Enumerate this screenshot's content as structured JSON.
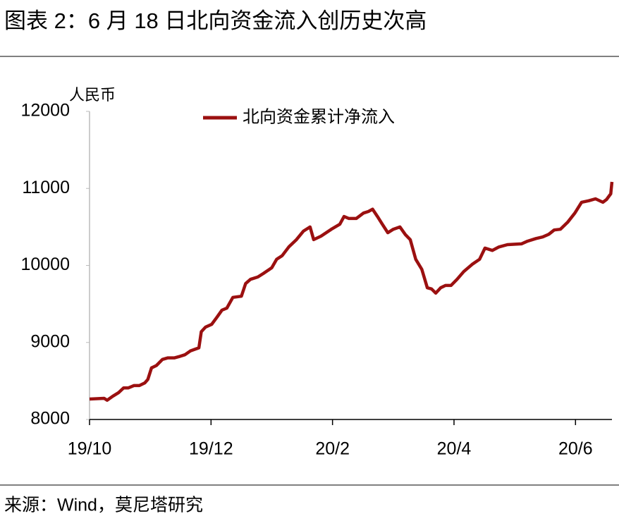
{
  "chart_data": {
    "type": "line",
    "title": "图表 2：6 月 18 日北向资金流入创历史次高",
    "y_label": "人民币",
    "source": "来源：Wind，莫尼塔研究",
    "x": [
      0,
      0.24,
      0.29,
      0.38,
      0.48,
      0.56,
      0.64,
      0.73,
      0.82,
      0.91,
      0.96,
      1.02,
      1.1,
      1.2,
      1.29,
      1.4,
      1.49,
      1.57,
      1.66,
      1.8,
      1.84,
      1.91,
      2.01,
      2.1,
      2.18,
      2.26,
      2.36,
      2.5,
      2.57,
      2.65,
      2.77,
      2.86,
      3.0,
      3.08,
      3.17,
      3.28,
      3.4,
      3.52,
      3.63,
      3.69,
      3.81,
      3.98,
      4.12,
      4.19,
      4.27,
      4.39,
      4.51,
      4.59,
      4.66,
      4.74,
      4.82,
      4.91,
      5.0,
      5.11,
      5.2,
      5.28,
      5.37,
      5.47,
      5.56,
      5.63,
      5.7,
      5.78,
      5.86,
      5.95,
      6.05,
      6.16,
      6.3,
      6.42,
      6.51,
      6.63,
      6.74,
      6.88,
      7.11,
      7.21,
      7.35,
      7.46,
      7.56,
      7.65,
      7.75,
      7.87,
      7.99,
      8.1,
      8.22,
      8.33,
      8.45,
      8.51,
      8.58,
      8.6
    ],
    "series": [
      {
        "name": "北向资金累计净流入",
        "color": "#9b1010",
        "values": [
          8265,
          8275,
          8250,
          8300,
          8350,
          8410,
          8410,
          8440,
          8440,
          8475,
          8520,
          8670,
          8700,
          8780,
          8800,
          8800,
          8820,
          8840,
          8890,
          8930,
          9140,
          9200,
          9235,
          9330,
          9420,
          9445,
          9585,
          9600,
          9765,
          9820,
          9850,
          9895,
          9970,
          10080,
          10125,
          10240,
          10330,
          10445,
          10500,
          10335,
          10380,
          10470,
          10535,
          10635,
          10610,
          10610,
          10680,
          10700,
          10730,
          10635,
          10535,
          10425,
          10470,
          10500,
          10400,
          10335,
          10080,
          9950,
          9710,
          9695,
          9640,
          9710,
          9740,
          9740,
          9820,
          9920,
          10015,
          10080,
          10225,
          10195,
          10240,
          10270,
          10280,
          10315,
          10350,
          10370,
          10405,
          10460,
          10470,
          10560,
          10680,
          10820,
          10840,
          10865,
          10820,
          10855,
          10930,
          11085
        ]
      }
    ],
    "xlim": [
      0,
      8.6
    ],
    "xticks": [
      {
        "value": 0,
        "label": "19/10"
      },
      {
        "value": 2,
        "label": "19/12"
      },
      {
        "value": 4,
        "label": "20/2"
      },
      {
        "value": 6,
        "label": "20/4"
      },
      {
        "value": 8,
        "label": "20/6"
      }
    ],
    "ylim": [
      8000,
      12000
    ],
    "yticks": [
      8000,
      9000,
      10000,
      11000,
      12000
    ],
    "grid": false
  }
}
